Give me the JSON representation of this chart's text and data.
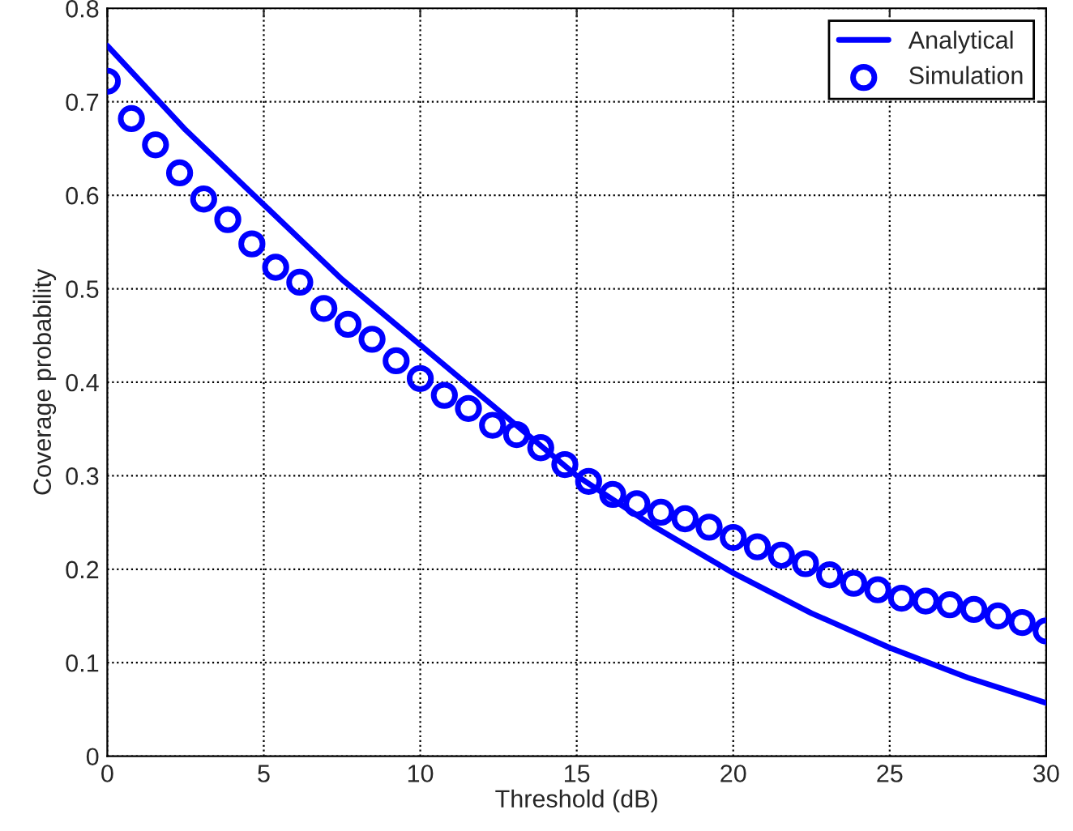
{
  "chart_data": {
    "type": "line",
    "xlabel": "Threshold (dB)",
    "ylabel": "Coverage probability",
    "xlim": [
      0,
      30
    ],
    "ylim": [
      0,
      0.8
    ],
    "xticks": [
      0,
      5,
      10,
      15,
      20,
      25,
      30
    ],
    "yticks": [
      0,
      0.1,
      0.2,
      0.3,
      0.4,
      0.5,
      0.6,
      0.7,
      0.8
    ],
    "grid": true,
    "legend": "top right",
    "series": [
      {
        "name": "Analytical",
        "color": "#0000ff",
        "marker": "none",
        "line_style": "solid",
        "x": [
          0,
          2.5,
          5,
          7.5,
          10,
          12.5,
          15,
          17.5,
          20,
          22.5,
          25,
          27.5,
          30
        ],
        "values": [
          0.76,
          0.67,
          0.59,
          0.51,
          0.44,
          0.37,
          0.3,
          0.245,
          0.196,
          0.153,
          0.116,
          0.084,
          0.057
        ]
      },
      {
        "name": "Simulation",
        "type": "scatter",
        "color": "#0000ff",
        "marker": "circle",
        "x": [
          0,
          0.77,
          1.54,
          2.31,
          3.08,
          3.85,
          4.62,
          5.38,
          6.15,
          6.92,
          7.69,
          8.46,
          9.23,
          10,
          10.77,
          11.54,
          12.31,
          13.08,
          13.85,
          14.62,
          15.38,
          16.15,
          16.92,
          17.69,
          18.46,
          19.23,
          20,
          20.77,
          21.54,
          22.31,
          23.08,
          23.85,
          24.62,
          25.38,
          26.15,
          26.92,
          27.69,
          28.46,
          29.23,
          30
        ],
        "values": [
          0.722,
          0.682,
          0.654,
          0.624,
          0.596,
          0.574,
          0.548,
          0.523,
          0.507,
          0.479,
          0.462,
          0.446,
          0.423,
          0.404,
          0.386,
          0.372,
          0.354,
          0.344,
          0.33,
          0.312,
          0.294,
          0.28,
          0.27,
          0.261,
          0.254,
          0.245,
          0.234,
          0.224,
          0.215,
          0.206,
          0.194,
          0.185,
          0.178,
          0.169,
          0.166,
          0.162,
          0.157,
          0.15,
          0.143,
          0.134
        ]
      }
    ]
  }
}
